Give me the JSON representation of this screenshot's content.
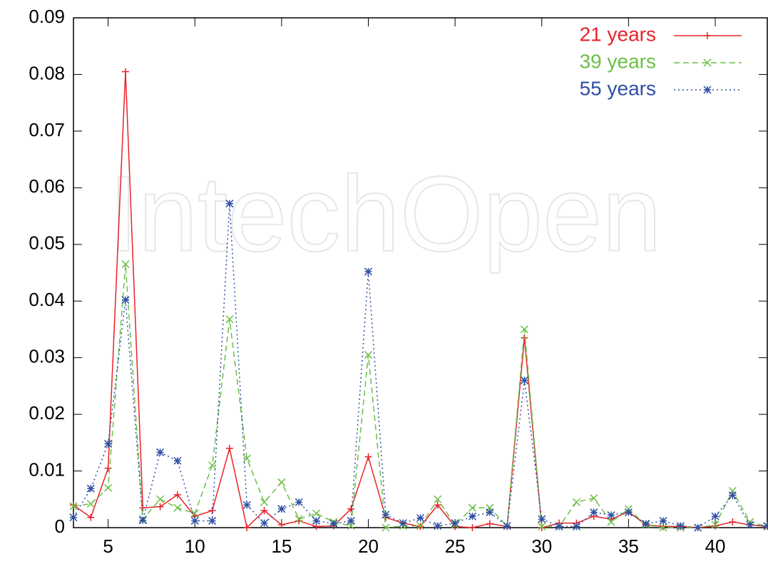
{
  "chart_data": {
    "type": "line",
    "watermark": "IntechOpen",
    "x": [
      3,
      4,
      5,
      6,
      7,
      8,
      9,
      10,
      11,
      12,
      13,
      14,
      15,
      16,
      17,
      18,
      19,
      20,
      21,
      22,
      23,
      24,
      25,
      26,
      27,
      28,
      29,
      30,
      31,
      32,
      33,
      34,
      35,
      36,
      37,
      38,
      39,
      40,
      41,
      42,
      43
    ],
    "series": [
      {
        "name": "21 years",
        "color": "#e8222a",
        "dash": "none",
        "marker": "plus",
        "values": [
          0.004,
          0.0018,
          0.0105,
          0.0805,
          0.0035,
          0.0037,
          0.0058,
          0.002,
          0.003,
          0.014,
          0.0,
          0.003,
          0.0005,
          0.0012,
          0.0002,
          0.0003,
          0.0033,
          0.0125,
          0.0018,
          0.0008,
          0.0002,
          0.004,
          0.0002,
          0.0,
          0.0007,
          0.0002,
          0.0335,
          0.0,
          0.0008,
          0.0008,
          0.002,
          0.0015,
          0.0028,
          0.0005,
          0.0002,
          0.0002,
          0.0,
          0.0003,
          0.001,
          0.0005,
          0.0002
        ]
      },
      {
        "name": "39 years",
        "color": "#6cbf45",
        "dash": "8 5",
        "marker": "cross",
        "values": [
          0.0038,
          0.0042,
          0.007,
          0.0465,
          0.0015,
          0.005,
          0.0035,
          0.0025,
          0.011,
          0.0368,
          0.0122,
          0.0045,
          0.008,
          0.0015,
          0.0025,
          0.001,
          0.0003,
          0.0305,
          0.0,
          0.0003,
          0.0003,
          0.005,
          0.0005,
          0.0035,
          0.0035,
          0.0003,
          0.035,
          0.0002,
          0.0002,
          0.0045,
          0.0052,
          0.001,
          0.0033,
          0.0005,
          0.0,
          0.0,
          0.0,
          0.0005,
          0.0065,
          0.001,
          0.0002
        ]
      },
      {
        "name": "55 years",
        "color": "#2e4fa3",
        "dash": "2 4",
        "marker": "star",
        "values": [
          0.0018,
          0.0069,
          0.0148,
          0.0402,
          0.0013,
          0.0133,
          0.0118,
          0.0012,
          0.0012,
          0.0572,
          0.004,
          0.0008,
          0.0033,
          0.0045,
          0.0012,
          0.0007,
          0.0012,
          0.0452,
          0.0023,
          0.0008,
          0.0017,
          0.0003,
          0.0008,
          0.002,
          0.0027,
          0.0003,
          0.026,
          0.0015,
          0.0002,
          0.0002,
          0.0027,
          0.0022,
          0.0027,
          0.0007,
          0.0012,
          0.0003,
          0.0,
          0.002,
          0.0057,
          0.0005,
          0.0003
        ]
      }
    ],
    "xlim": [
      3,
      43
    ],
    "xticks": [
      5,
      10,
      15,
      20,
      25,
      30,
      35,
      40
    ],
    "ylim": [
      0,
      0.09
    ],
    "yticks": [
      0,
      0.01,
      0.02,
      0.03,
      0.04,
      0.05,
      0.06,
      0.07,
      0.08,
      0.09
    ],
    "legend": "top-right"
  }
}
